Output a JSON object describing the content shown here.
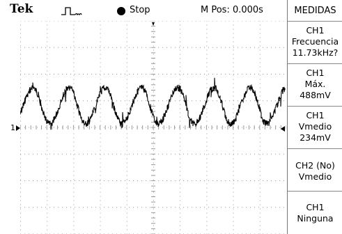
{
  "header": {
    "brand": "Tek",
    "trigger_icon": "pulse-trigger-icon",
    "run_state": "Stop",
    "m_pos": "M Pos: 0.000s"
  },
  "screen": {
    "channel_marker": "1",
    "grid": true,
    "trace_color": "#000000"
  },
  "menu": {
    "title": "MEDIDAS",
    "measurements": [
      {
        "lines": [
          "CH1",
          "Frecuencia",
          "11.73kHz?"
        ]
      },
      {
        "lines": [
          "CH1",
          "Máx.",
          "488mV"
        ]
      },
      {
        "lines": [
          "CH1",
          "Vmedio",
          "234mV"
        ]
      },
      {
        "lines": [
          "CH2 (No)",
          "Vmedio"
        ]
      },
      {
        "lines": [
          "CH1",
          "Ninguna"
        ]
      }
    ]
  }
}
